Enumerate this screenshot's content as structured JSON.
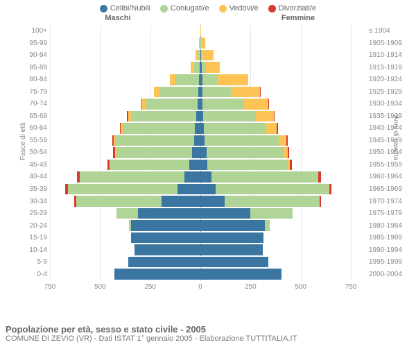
{
  "legend": [
    {
      "label": "Celibi/Nubili",
      "color": "#3b76a3"
    },
    {
      "label": "Coniugati/e",
      "color": "#b0d396"
    },
    {
      "label": "Vedovi/e",
      "color": "#fdc455"
    },
    {
      "label": "Divorziati/e",
      "color": "#d73a2f"
    }
  ],
  "gender": {
    "m": "Maschi",
    "f": "Femmine"
  },
  "axis": {
    "y_left_title": "Fasce di età",
    "y_right_title": "Anni di nascita",
    "x_max": 750,
    "x_ticks": [
      750,
      500,
      250,
      0,
      250,
      500,
      750
    ]
  },
  "age_groups": [
    {
      "age": "0-4",
      "birth": "2000-2004",
      "m": [
        430,
        0,
        0,
        0
      ],
      "f": [
        405,
        0,
        0,
        0
      ]
    },
    {
      "age": "5-9",
      "birth": "1995-1999",
      "m": [
        360,
        0,
        0,
        0
      ],
      "f": [
        340,
        0,
        0,
        0
      ]
    },
    {
      "age": "10-14",
      "birth": "1990-1994",
      "m": [
        330,
        0,
        0,
        0
      ],
      "f": [
        310,
        0,
        0,
        0
      ]
    },
    {
      "age": "15-19",
      "birth": "1985-1989",
      "m": [
        345,
        0,
        0,
        0
      ],
      "f": [
        315,
        0,
        0,
        0
      ]
    },
    {
      "age": "20-24",
      "birth": "1980-1984",
      "m": [
        345,
        10,
        0,
        0
      ],
      "f": [
        320,
        25,
        0,
        0
      ]
    },
    {
      "age": "25-29",
      "birth": "1975-1979",
      "m": [
        310,
        110,
        0,
        0
      ],
      "f": [
        250,
        210,
        0,
        0
      ]
    },
    {
      "age": "30-34",
      "birth": "1970-1974",
      "m": [
        195,
        425,
        0,
        10
      ],
      "f": [
        120,
        475,
        0,
        8
      ]
    },
    {
      "age": "35-39",
      "birth": "1965-1969",
      "m": [
        115,
        545,
        0,
        14
      ],
      "f": [
        75,
        565,
        2,
        12
      ]
    },
    {
      "age": "40-44",
      "birth": "1960-1964",
      "m": [
        80,
        520,
        2,
        12
      ],
      "f": [
        55,
        530,
        4,
        14
      ]
    },
    {
      "age": "45-49",
      "birth": "1955-1959",
      "m": [
        55,
        395,
        2,
        10
      ],
      "f": [
        35,
        400,
        10,
        10
      ]
    },
    {
      "age": "50-54",
      "birth": "1950-1954",
      "m": [
        40,
        380,
        4,
        10
      ],
      "f": [
        30,
        385,
        20,
        6
      ]
    },
    {
      "age": "55-59",
      "birth": "1945-1949",
      "m": [
        30,
        395,
        6,
        8
      ],
      "f": [
        22,
        370,
        38,
        6
      ]
    },
    {
      "age": "60-64",
      "birth": "1940-1944",
      "m": [
        28,
        360,
        8,
        6
      ],
      "f": [
        18,
        308,
        55,
        6
      ]
    },
    {
      "age": "65-69",
      "birth": "1935-1939",
      "m": [
        22,
        325,
        14,
        4
      ],
      "f": [
        15,
        262,
        90,
        4
      ]
    },
    {
      "age": "70-74",
      "birth": "1930-1934",
      "m": [
        15,
        255,
        22,
        2
      ],
      "f": [
        12,
        205,
        120,
        2
      ]
    },
    {
      "age": "75-79",
      "birth": "1925-1929",
      "m": [
        10,
        195,
        28,
        0
      ],
      "f": [
        12,
        140,
        145,
        2
      ]
    },
    {
      "age": "80-84",
      "birth": "1920-1924",
      "m": [
        6,
        118,
        28,
        0
      ],
      "f": [
        10,
        72,
        155,
        0
      ]
    },
    {
      "age": "85-89",
      "birth": "1915-1919",
      "m": [
        2,
        30,
        18,
        0
      ],
      "f": [
        6,
        20,
        72,
        0
      ]
    },
    {
      "age": "90-94",
      "birth": "1910-1914",
      "m": [
        1,
        10,
        12,
        0
      ],
      "f": [
        4,
        6,
        55,
        0
      ]
    },
    {
      "age": "95-99",
      "birth": "1905-1909",
      "m": [
        0,
        2,
        6,
        0
      ],
      "f": [
        1,
        2,
        20,
        0
      ]
    },
    {
      "age": "100+",
      "birth": "≤ 1904",
      "m": [
        0,
        0,
        0,
        0
      ],
      "f": [
        0,
        0,
        4,
        0
      ]
    }
  ],
  "footer": {
    "title": "Popolazione per età, sesso e stato civile - 2005",
    "subtitle": "COMUNE DI ZEVIO (VR) - Dati ISTAT 1° gennaio 2005 - Elaborazione TUTTITALIA.IT"
  },
  "colors": {
    "grid": "#e5e5e5",
    "text": "#888",
    "bg": "#ffffff"
  }
}
